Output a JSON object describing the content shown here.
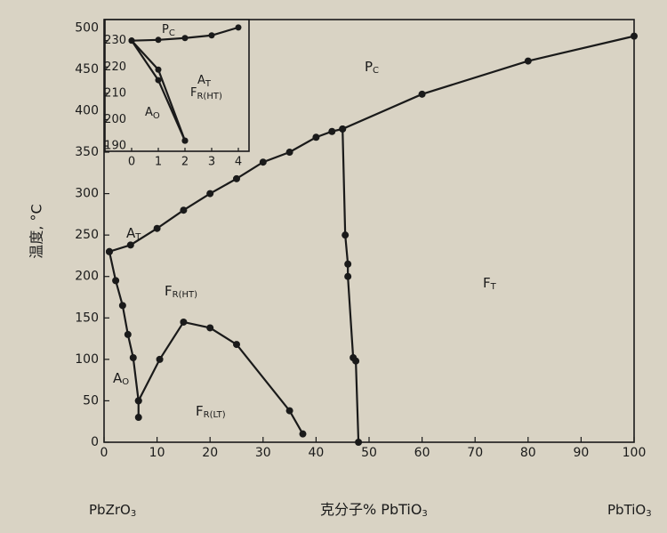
{
  "chart_data": [
    {
      "type": "line",
      "ylabel": "温度, °C",
      "xlabel": {
        "text": "克分子% PbTiO",
        "sub": "3"
      },
      "xlim": [
        0,
        100
      ],
      "xticks": [
        0,
        10,
        20,
        30,
        40,
        50,
        60,
        70,
        80,
        90,
        100
      ],
      "ylim": [
        0,
        510
      ],
      "yticks": [
        0,
        50,
        100,
        150,
        200,
        250,
        300,
        350,
        400,
        450,
        500
      ],
      "series": [
        {
          "color": "#1a1a1a",
          "x": [
            1,
            5,
            10,
            15,
            20,
            25,
            30,
            35,
            40,
            43,
            45,
            60,
            80,
            100
          ],
          "values": [
            230,
            238,
            258,
            280,
            300,
            318,
            338,
            350,
            368,
            375,
            378,
            420,
            460,
            490
          ]
        },
        {
          "color": "#1a1a1a",
          "x": [
            45,
            45.5,
            46,
            46,
            47,
            47.5,
            48
          ],
          "values": [
            378,
            250,
            215,
            200,
            102,
            98,
            0
          ]
        },
        {
          "color": "#1a1a1a",
          "x": [
            1,
            2.2,
            3.5,
            4.5,
            5.5,
            6.5,
            6.5
          ],
          "values": [
            230,
            195,
            165,
            130,
            102,
            50,
            30
          ]
        },
        {
          "color": "#1a1a1a",
          "x": [
            6.5,
            10.5,
            15,
            20,
            25,
            35,
            37.5
          ],
          "values": [
            50,
            100,
            145,
            138,
            118,
            38,
            10
          ]
        }
      ],
      "annotations": [
        {
          "text": "P",
          "sub": "C"
        },
        {
          "text": "A",
          "sub": "T"
        },
        {
          "text": "F",
          "sub": "R(HT)"
        },
        {
          "text": "F",
          "sub": "T"
        },
        {
          "text": "A",
          "sub": "O"
        },
        {
          "text": "F",
          "sub": "R(LT)"
        },
        {
          "text": "PbZrO",
          "sub": "3"
        },
        {
          "text": "PbTiO",
          "sub": "3"
        }
      ]
    },
    {
      "type": "line",
      "xlim": [
        -1,
        4.4
      ],
      "xticks": [
        0,
        1,
        2,
        3,
        4
      ],
      "ylim": [
        188,
        238
      ],
      "yticks": [
        190,
        200,
        210,
        220,
        230
      ],
      "series": [
        {
          "color": "#1a1a1a",
          "x": [
            0,
            1,
            2,
            3,
            4
          ],
          "values": [
            230,
            230.3,
            231,
            232,
            235
          ]
        },
        {
          "color": "#1a1a1a",
          "x": [
            0,
            1,
            2
          ],
          "values": [
            230,
            219,
            192
          ]
        },
        {
          "color": "#1a1a1a",
          "x": [
            0,
            1,
            2
          ],
          "values": [
            230,
            215,
            192
          ]
        }
      ],
      "annotations": [
        {
          "text": "P",
          "sub": "C"
        },
        {
          "text": "A",
          "sub": "T"
        },
        {
          "text": "F",
          "sub": "R(HT)"
        },
        {
          "text": "A",
          "sub": "O"
        }
      ]
    }
  ]
}
